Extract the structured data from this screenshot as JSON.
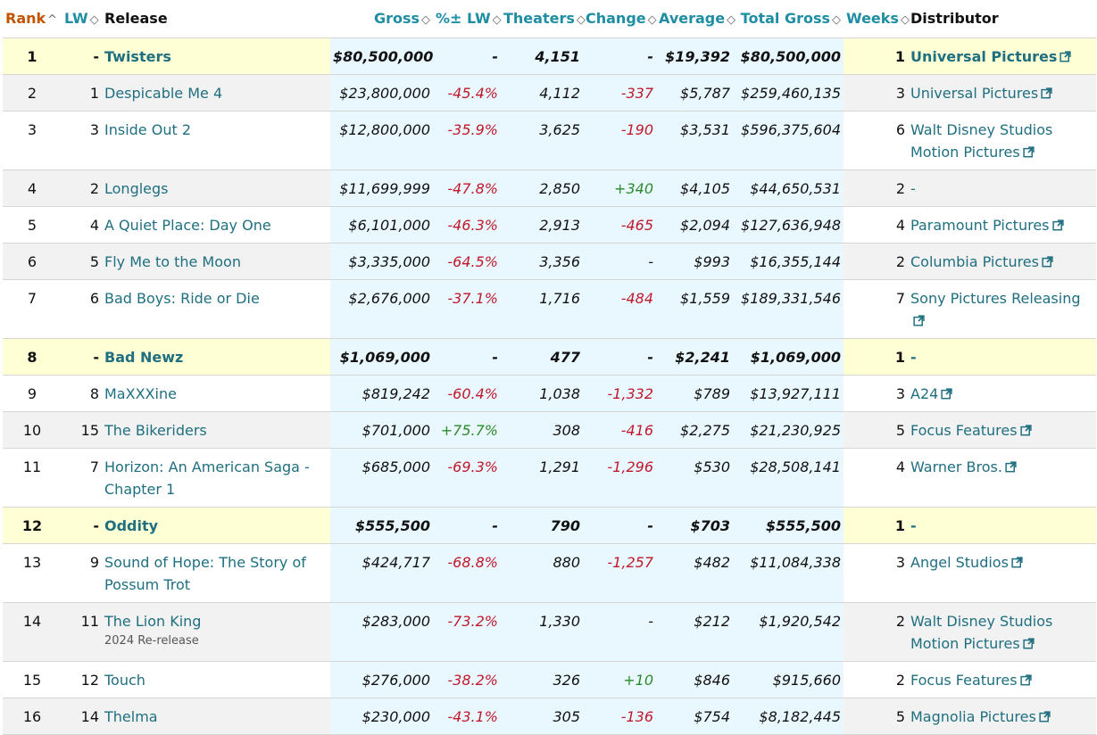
{
  "columns": {
    "rank": "Rank",
    "lw": "LW",
    "release": "Release",
    "gross": "Gross",
    "pct": "%± LW",
    "theaters": "Theaters",
    "change": "Change",
    "average": "Average",
    "total": "Total Gross",
    "weeks": "Weeks",
    "distributor": "Distributor"
  },
  "sort_glyphs": {
    "up": "^",
    "both": "◇"
  },
  "icons": {
    "sort": "sort-arrows-icon",
    "external": "external-link-icon"
  },
  "colors": {
    "header_link": "#1f8ea3",
    "rank_header": "#c45500",
    "negative": "#c0192b",
    "positive": "#2c8a2c",
    "highlight_new": "#ffffd5",
    "gross_column": "#e9f8ff",
    "striped": "#f2f2f2"
  },
  "rows": [
    {
      "rank": "1",
      "lw": "-",
      "release": "Twisters",
      "sub": "",
      "gross": "$80,500,000",
      "pct": "-",
      "pct_dir": "none",
      "theaters": "4,151",
      "change": "-",
      "change_dir": "none",
      "average": "$19,392",
      "total": "$80,500,000",
      "weeks": "1",
      "distributor": "Universal Pictures",
      "ext": true,
      "new": true
    },
    {
      "rank": "2",
      "lw": "1",
      "release": "Despicable Me 4",
      "sub": "",
      "gross": "$23,800,000",
      "pct": "-45.4%",
      "pct_dir": "neg",
      "theaters": "4,112",
      "change": "-337",
      "change_dir": "neg",
      "average": "$5,787",
      "total": "$259,460,135",
      "weeks": "3",
      "distributor": "Universal Pictures",
      "ext": true,
      "new": false
    },
    {
      "rank": "3",
      "lw": "3",
      "release": "Inside Out 2",
      "sub": "",
      "gross": "$12,800,000",
      "pct": "-35.9%",
      "pct_dir": "neg",
      "theaters": "3,625",
      "change": "-190",
      "change_dir": "neg",
      "average": "$3,531",
      "total": "$596,375,604",
      "weeks": "6",
      "distributor": "Walt Disney Studios Motion Pictures",
      "ext": true,
      "new": false
    },
    {
      "rank": "4",
      "lw": "2",
      "release": "Longlegs",
      "sub": "",
      "gross": "$11,699,999",
      "pct": "-47.8%",
      "pct_dir": "neg",
      "theaters": "2,850",
      "change": "+340",
      "change_dir": "pos",
      "average": "$4,105",
      "total": "$44,650,531",
      "weeks": "2",
      "distributor": "-",
      "ext": false,
      "new": false
    },
    {
      "rank": "5",
      "lw": "4",
      "release": "A Quiet Place: Day One",
      "sub": "",
      "gross": "$6,101,000",
      "pct": "-46.3%",
      "pct_dir": "neg",
      "theaters": "2,913",
      "change": "-465",
      "change_dir": "neg",
      "average": "$2,094",
      "total": "$127,636,948",
      "weeks": "4",
      "distributor": "Paramount Pictures",
      "ext": true,
      "new": false
    },
    {
      "rank": "6",
      "lw": "5",
      "release": "Fly Me to the Moon",
      "sub": "",
      "gross": "$3,335,000",
      "pct": "-64.5%",
      "pct_dir": "neg",
      "theaters": "3,356",
      "change": "-",
      "change_dir": "none",
      "average": "$993",
      "total": "$16,355,144",
      "weeks": "2",
      "distributor": "Columbia Pictures",
      "ext": true,
      "new": false
    },
    {
      "rank": "7",
      "lw": "6",
      "release": "Bad Boys: Ride or Die",
      "sub": "",
      "gross": "$2,676,000",
      "pct": "-37.1%",
      "pct_dir": "neg",
      "theaters": "1,716",
      "change": "-484",
      "change_dir": "neg",
      "average": "$1,559",
      "total": "$189,331,546",
      "weeks": "7",
      "distributor": "Sony Pictures Releasing",
      "ext": true,
      "new": false
    },
    {
      "rank": "8",
      "lw": "-",
      "release": "Bad Newz",
      "sub": "",
      "gross": "$1,069,000",
      "pct": "-",
      "pct_dir": "none",
      "theaters": "477",
      "change": "-",
      "change_dir": "none",
      "average": "$2,241",
      "total": "$1,069,000",
      "weeks": "1",
      "distributor": "-",
      "ext": false,
      "new": true
    },
    {
      "rank": "9",
      "lw": "8",
      "release": "MaXXXine",
      "sub": "",
      "gross": "$819,242",
      "pct": "-60.4%",
      "pct_dir": "neg",
      "theaters": "1,038",
      "change": "-1,332",
      "change_dir": "neg",
      "average": "$789",
      "total": "$13,927,111",
      "weeks": "3",
      "distributor": "A24",
      "ext": true,
      "new": false
    },
    {
      "rank": "10",
      "lw": "15",
      "release": "The Bikeriders",
      "sub": "",
      "gross": "$701,000",
      "pct": "+75.7%",
      "pct_dir": "pos",
      "theaters": "308",
      "change": "-416",
      "change_dir": "neg",
      "average": "$2,275",
      "total": "$21,230,925",
      "weeks": "5",
      "distributor": "Focus Features",
      "ext": true,
      "new": false
    },
    {
      "rank": "11",
      "lw": "7",
      "release": "Horizon: An American Saga - Chapter 1",
      "sub": "",
      "gross": "$685,000",
      "pct": "-69.3%",
      "pct_dir": "neg",
      "theaters": "1,291",
      "change": "-1,296",
      "change_dir": "neg",
      "average": "$530",
      "total": "$28,508,141",
      "weeks": "4",
      "distributor": "Warner Bros.",
      "ext": true,
      "new": false
    },
    {
      "rank": "12",
      "lw": "-",
      "release": "Oddity",
      "sub": "",
      "gross": "$555,500",
      "pct": "-",
      "pct_dir": "none",
      "theaters": "790",
      "change": "-",
      "change_dir": "none",
      "average": "$703",
      "total": "$555,500",
      "weeks": "1",
      "distributor": "-",
      "ext": false,
      "new": true
    },
    {
      "rank": "13",
      "lw": "9",
      "release": "Sound of Hope: The Story of Possum Trot",
      "sub": "",
      "gross": "$424,717",
      "pct": "-68.8%",
      "pct_dir": "neg",
      "theaters": "880",
      "change": "-1,257",
      "change_dir": "neg",
      "average": "$482",
      "total": "$11,084,338",
      "weeks": "3",
      "distributor": "Angel Studios",
      "ext": true,
      "new": false
    },
    {
      "rank": "14",
      "lw": "11",
      "release": "The Lion King",
      "sub": "2024 Re-release",
      "gross": "$283,000",
      "pct": "-73.2%",
      "pct_dir": "neg",
      "theaters": "1,330",
      "change": "-",
      "change_dir": "none",
      "average": "$212",
      "total": "$1,920,542",
      "weeks": "2",
      "distributor": "Walt Disney Studios Motion Pictures",
      "ext": true,
      "new": false
    },
    {
      "rank": "15",
      "lw": "12",
      "release": "Touch",
      "sub": "",
      "gross": "$276,000",
      "pct": "-38.2%",
      "pct_dir": "neg",
      "theaters": "326",
      "change": "+10",
      "change_dir": "pos",
      "average": "$846",
      "total": "$915,660",
      "weeks": "2",
      "distributor": "Focus Features",
      "ext": true,
      "new": false
    },
    {
      "rank": "16",
      "lw": "14",
      "release": "Thelma",
      "sub": "",
      "gross": "$230,000",
      "pct": "-43.1%",
      "pct_dir": "neg",
      "theaters": "305",
      "change": "-136",
      "change_dir": "neg",
      "average": "$754",
      "total": "$8,182,445",
      "weeks": "5",
      "distributor": "Magnolia Pictures",
      "ext": true,
      "new": false
    }
  ]
}
